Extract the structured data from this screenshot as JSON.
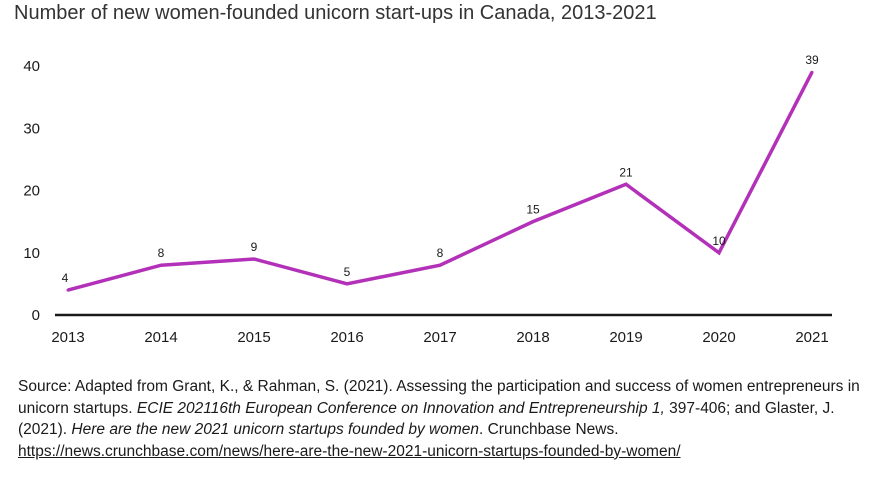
{
  "title": "Number of new women-founded unicorn start-ups in Canada, 2013-2021",
  "colors": {
    "line": "#b231b8",
    "axis": "#1a1a1a",
    "text": "#1a1a1a"
  },
  "chart_data": {
    "type": "line",
    "title": "Number of new women-founded unicorn start-ups in Canada, 2013-2021",
    "categories": [
      "2013",
      "2014",
      "2015",
      "2016",
      "2017",
      "2018",
      "2019",
      "2020",
      "2021"
    ],
    "series": [
      {
        "values": [
          4,
          8,
          9,
          5,
          8,
          15,
          21,
          10,
          39
        ]
      }
    ],
    "data_labels": [
      "4",
      "8",
      "9",
      "5",
      "8",
      "15",
      "21",
      "10",
      "39"
    ],
    "y_ticks": [
      "0",
      "10",
      "20",
      "30",
      "40"
    ],
    "ylim": [
      0,
      40
    ],
    "xlabel": "",
    "ylabel": "",
    "grid": false,
    "legend": "none"
  },
  "source": {
    "part1": "Source: Adapted from Grant, K., & Rahman, S. (2021). Assessing the participation and success of women entrepreneurs in unicorn startups. ",
    "part2": "ECIE 202116th European Conference on Innovation and Entrepreneurship 1,",
    "part3": " 397-406; and Glaster, J. (2021). ",
    "part4": "Here are the new 2021 unicorn startups founded by women",
    "part5": ". Crunchbase News.",
    "link": "https://news.crunchbase.com/news/here-are-the-new-2021-unicorn-startups-founded-by-women/"
  }
}
